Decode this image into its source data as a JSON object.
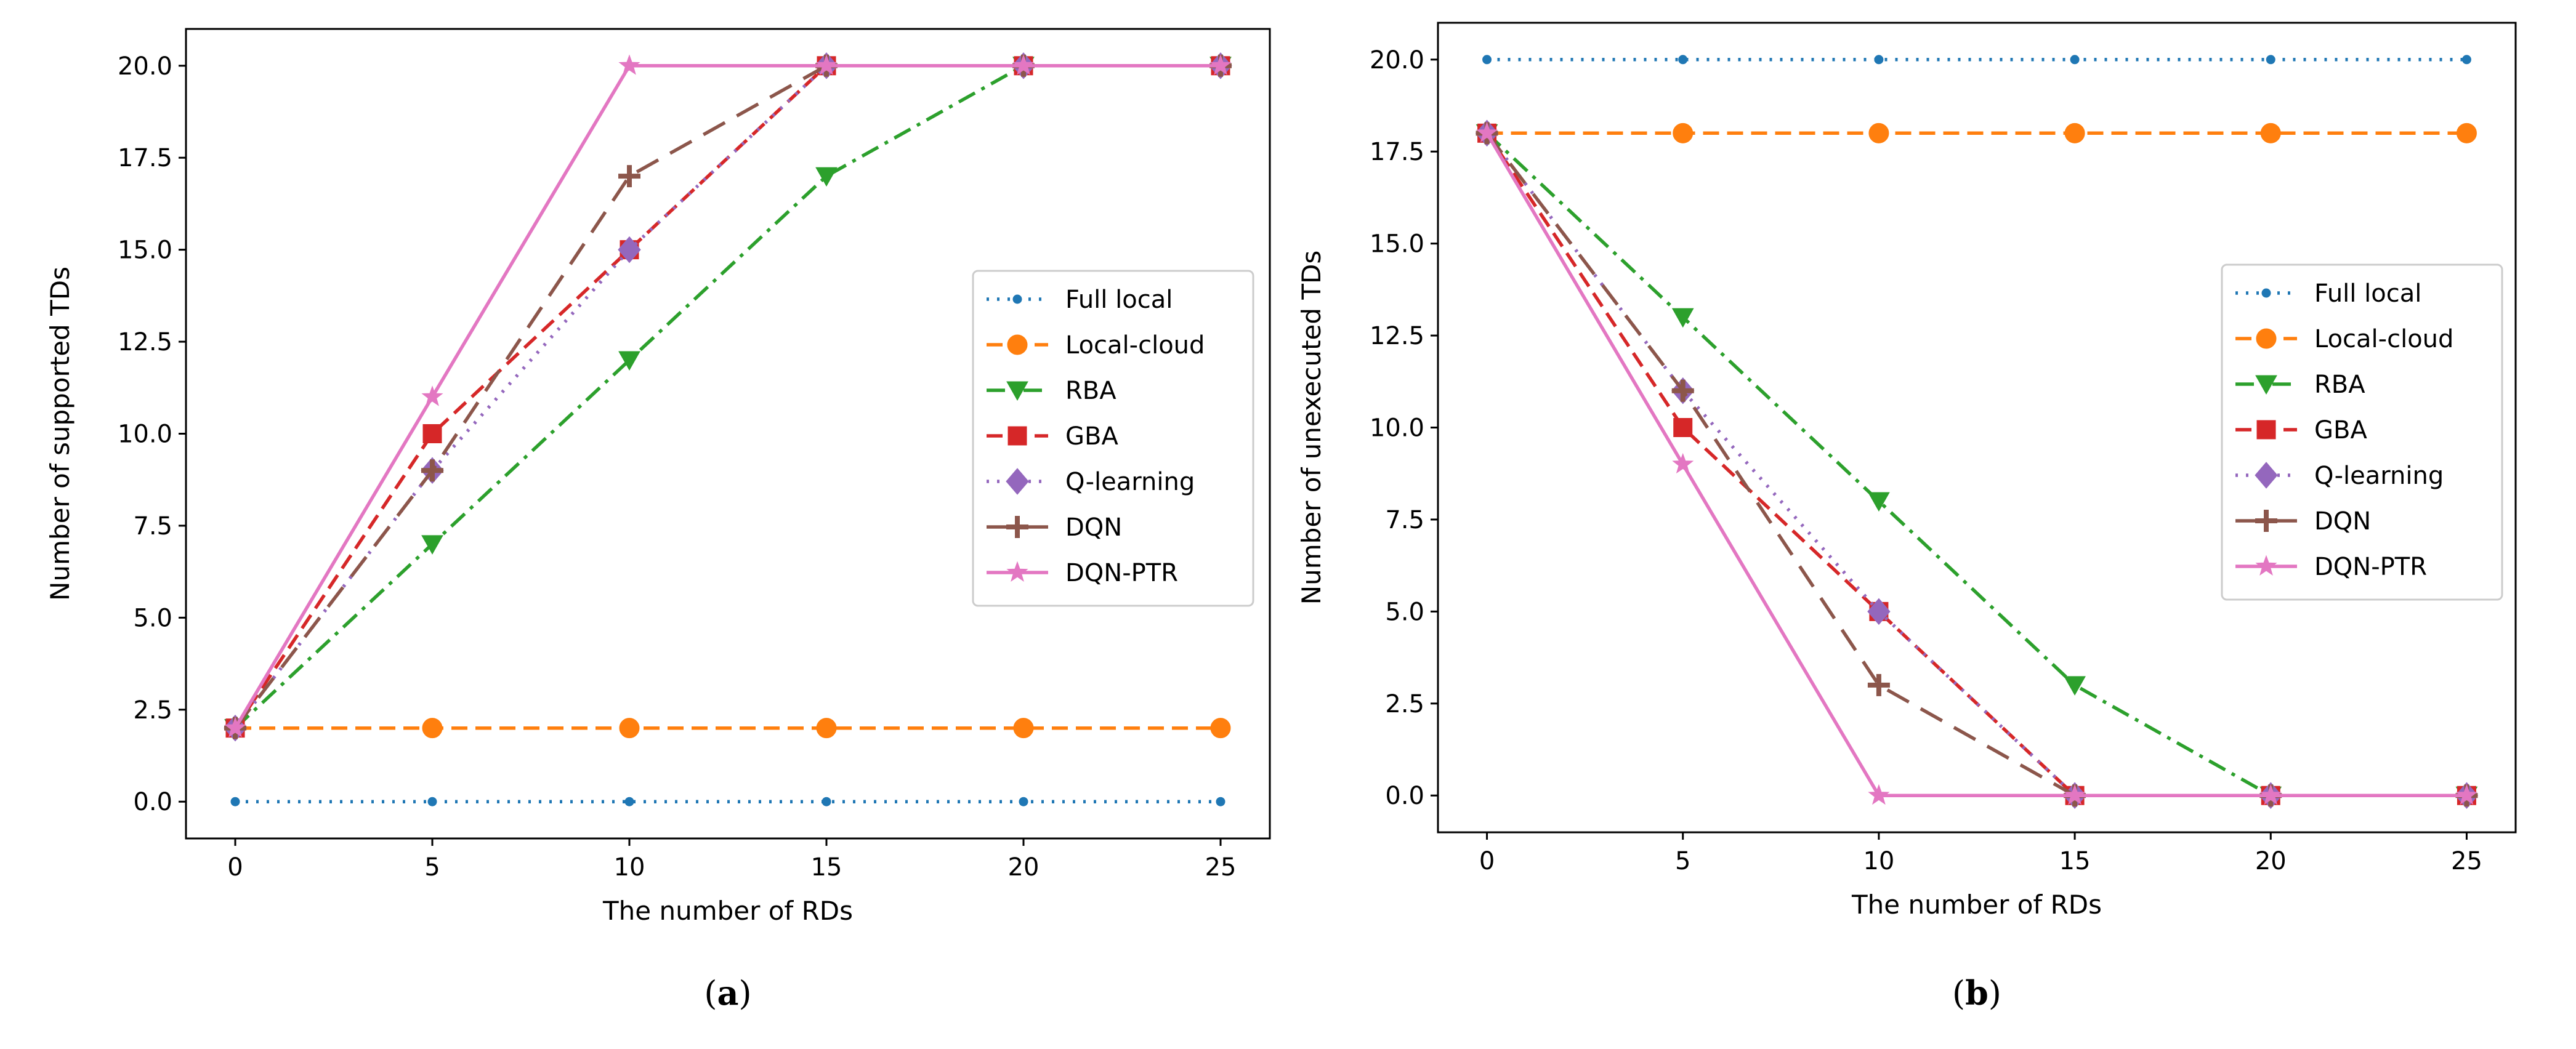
{
  "chart_data": [
    {
      "id": "a",
      "type": "line",
      "caption": "a",
      "title": "",
      "xlabel": "The number of RDs",
      "ylabel": "Number of supported TDs",
      "x": [
        0,
        5,
        10,
        15,
        20,
        25
      ],
      "xlim": [
        -1.25,
        26.25
      ],
      "ylim": [
        -1.0,
        21.0
      ],
      "xticks": [
        0,
        5,
        10,
        15,
        20,
        25
      ],
      "yticks": [
        0.0,
        2.5,
        5.0,
        7.5,
        10.0,
        12.5,
        15.0,
        17.5,
        20.0
      ],
      "legend_loc": "center-right",
      "series": [
        {
          "name": "Full local",
          "color": "#1f77b4",
          "marker": "dot",
          "linestyle": "dotted",
          "values": [
            0,
            0,
            0,
            0,
            0,
            0
          ]
        },
        {
          "name": "Local-cloud",
          "color": "#ff7f0e",
          "marker": "circle",
          "linestyle": "dashed",
          "values": [
            2,
            2,
            2,
            2,
            2,
            2
          ]
        },
        {
          "name": "RBA",
          "color": "#2ca02c",
          "marker": "triangle-down",
          "linestyle": "dashdot",
          "values": [
            2,
            7,
            12,
            17,
            20,
            20
          ]
        },
        {
          "name": "GBA",
          "color": "#d62728",
          "marker": "square",
          "linestyle": "dashed",
          "values": [
            2,
            10,
            15,
            20,
            20,
            20
          ]
        },
        {
          "name": "Q-learning",
          "color": "#9467bd",
          "marker": "diamond",
          "linestyle": "dotted",
          "values": [
            2,
            9,
            15,
            20,
            20,
            20
          ]
        },
        {
          "name": "DQN",
          "color": "#8c564b",
          "marker": "plus",
          "linestyle": "longdash",
          "values": [
            2,
            9,
            17,
            20,
            20,
            20
          ]
        },
        {
          "name": "DQN-PTR",
          "color": "#e377c2",
          "marker": "star",
          "linestyle": "solid",
          "values": [
            2,
            11,
            20,
            20,
            20,
            20
          ]
        }
      ]
    },
    {
      "id": "b",
      "type": "line",
      "caption": "b",
      "title": "",
      "xlabel": "The number of RDs",
      "ylabel": "Number of unexecuted TDs",
      "x": [
        0,
        5,
        10,
        15,
        20,
        25
      ],
      "xlim": [
        -1.25,
        26.25
      ],
      "ylim": [
        -1.0,
        21.0
      ],
      "xticks": [
        0,
        5,
        10,
        15,
        20,
        25
      ],
      "yticks": [
        0.0,
        2.5,
        5.0,
        7.5,
        10.0,
        12.5,
        15.0,
        17.5,
        20.0
      ],
      "legend_loc": "center-right",
      "series": [
        {
          "name": "Full local",
          "color": "#1f77b4",
          "marker": "dot",
          "linestyle": "dotted",
          "values": [
            20,
            20,
            20,
            20,
            20,
            20
          ]
        },
        {
          "name": "Local-cloud",
          "color": "#ff7f0e",
          "marker": "circle",
          "linestyle": "dashed",
          "values": [
            18,
            18,
            18,
            18,
            18,
            18
          ]
        },
        {
          "name": "RBA",
          "color": "#2ca02c",
          "marker": "triangle-down",
          "linestyle": "dashdot",
          "values": [
            18,
            13,
            8,
            3,
            0,
            0
          ]
        },
        {
          "name": "GBA",
          "color": "#d62728",
          "marker": "square",
          "linestyle": "dashed",
          "values": [
            18,
            10,
            5,
            0,
            0,
            0
          ]
        },
        {
          "name": "Q-learning",
          "color": "#9467bd",
          "marker": "diamond",
          "linestyle": "dotted",
          "values": [
            18,
            11,
            5,
            0,
            0,
            0
          ]
        },
        {
          "name": "DQN",
          "color": "#8c564b",
          "marker": "plus",
          "linestyle": "longdash",
          "values": [
            18,
            11,
            3,
            0,
            0,
            0
          ]
        },
        {
          "name": "DQN-PTR",
          "color": "#e377c2",
          "marker": "star",
          "linestyle": "solid",
          "values": [
            18,
            9,
            0,
            0,
            0,
            0
          ]
        }
      ]
    }
  ]
}
